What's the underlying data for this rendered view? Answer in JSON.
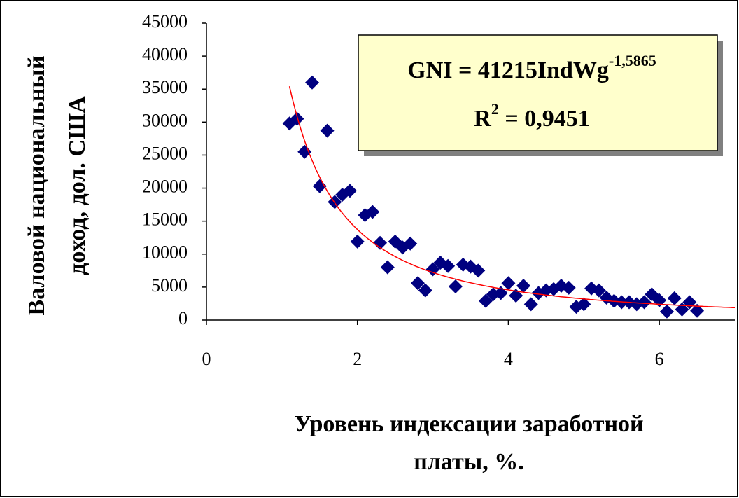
{
  "chart_data": {
    "type": "scatter",
    "y_label": [
      "Валовой национальный",
      "доход, дол. США"
    ],
    "x_label": [
      "Уровень индексации заработной",
      "платы, %."
    ],
    "x": [
      1.1,
      1.2,
      1.3,
      1.4,
      1.5,
      1.6,
      1.7,
      1.8,
      1.9,
      2.0,
      2.1,
      2.2,
      2.3,
      2.4,
      2.5,
      2.6,
      2.7,
      2.8,
      2.9,
      3.0,
      3.1,
      3.2,
      3.3,
      3.4,
      3.5,
      3.6,
      3.7,
      3.8,
      3.9,
      4.0,
      4.1,
      4.2,
      4.3,
      4.4,
      4.5,
      4.6,
      4.7,
      4.8,
      4.9,
      5.0,
      5.1,
      5.2,
      5.3,
      5.4,
      5.5,
      5.6,
      5.7,
      5.8,
      5.9,
      6.0,
      6.1,
      6.2,
      6.3,
      6.4,
      6.5
    ],
    "series": [
      {
        "color": "#000080",
        "values": [
          29800,
          30500,
          25500,
          36000,
          20300,
          28700,
          17900,
          19000,
          19600,
          11900,
          15900,
          16400,
          11700,
          8000,
          11900,
          11000,
          11600,
          5600,
          4500,
          7700,
          8700,
          8200,
          5100,
          8400,
          8100,
          7500,
          2900,
          3900,
          4100,
          5600,
          3700,
          5200,
          2400,
          4100,
          4500,
          4700,
          5200,
          4900,
          2000,
          2400,
          4800,
          4500,
          3400,
          2900,
          2700,
          2700,
          2400,
          2700,
          3900,
          3000,
          1300,
          3300,
          1600,
          2700,
          1400
        ]
      }
    ],
    "trendline": {
      "type": "power",
      "coefficient": 41215,
      "exponent": -1.5865,
      "range": [
        1.1,
        7
      ],
      "color": "#ff0000"
    },
    "equation": {
      "text": "GNI = 41215IndWg",
      "superscript": "-1,5865"
    },
    "r_squared": {
      "text": "R",
      "superscript": "2",
      "rest": " = 0,9451"
    },
    "xlim": [
      0,
      7
    ],
    "xticks": [
      0,
      2,
      4,
      6
    ],
    "ylim": [
      0,
      45000
    ],
    "yticks": [
      0,
      5000,
      10000,
      15000,
      20000,
      25000,
      30000,
      35000,
      40000,
      45000
    ],
    "grid": false
  }
}
